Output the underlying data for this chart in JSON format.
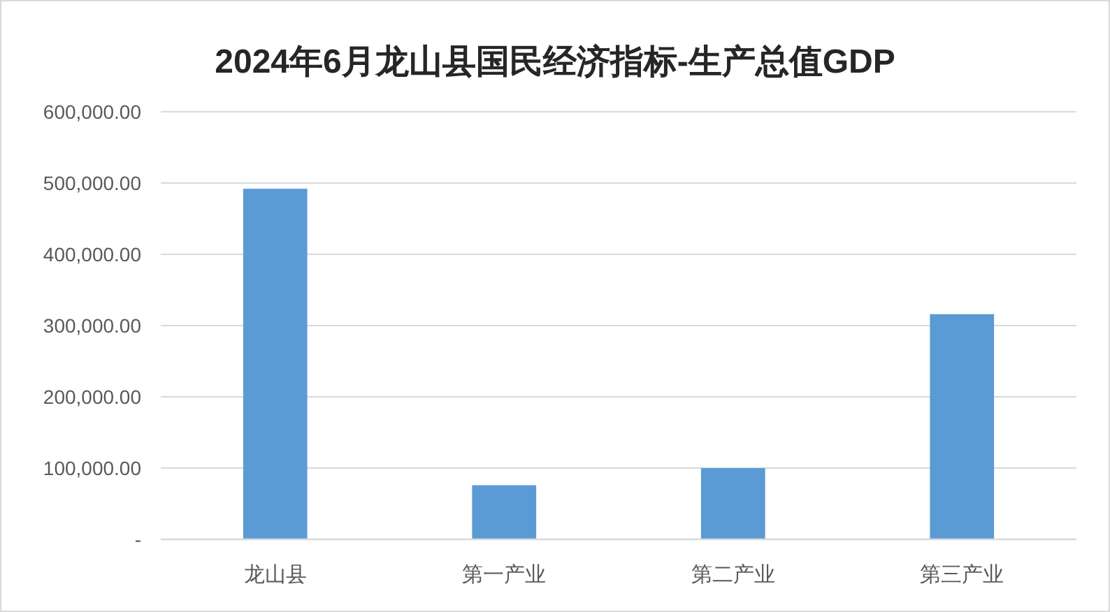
{
  "chart_data": {
    "type": "bar",
    "title": "2024年6月龙山县国民经济指标-生产总值GDP",
    "categories": [
      "龙山县",
      "第一产业",
      "第二产业",
      "第三产业"
    ],
    "values": [
      492000,
      76000,
      100000,
      316000
    ],
    "color": "#5b9bd5",
    "ylim": [
      0,
      600000
    ],
    "yticks": [
      {
        "value": 0,
        "label": "-"
      },
      {
        "value": 100000,
        "label": "100,000.00"
      },
      {
        "value": 200000,
        "label": "200,000.00"
      },
      {
        "value": 300000,
        "label": "300,000.00"
      },
      {
        "value": 400000,
        "label": "400,000.00"
      },
      {
        "value": 500000,
        "label": "500,000.00"
      },
      {
        "value": 600000,
        "label": "600,000.00"
      }
    ],
    "grid": "y"
  }
}
